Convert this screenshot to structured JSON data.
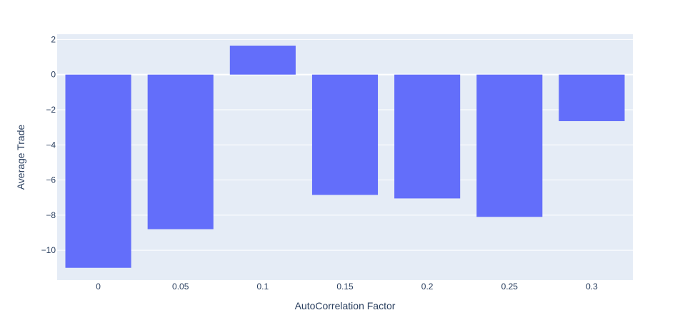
{
  "chart_data": {
    "type": "bar",
    "categories": [
      "0",
      "0.05",
      "0.1",
      "0.15",
      "0.2",
      "0.25",
      "0.3"
    ],
    "values": [
      -11.0,
      -8.8,
      1.65,
      -6.85,
      -7.05,
      -8.1,
      -2.65
    ],
    "xlabel": "AutoCorrelation Factor",
    "ylabel": "Average Trade",
    "ylim": [
      -11.7,
      2.3
    ],
    "yticks": [
      2,
      0,
      -2,
      -4,
      -6,
      -8,
      -10
    ],
    "ytick_labels": [
      "2",
      "0",
      "−2",
      "−4",
      "−6",
      "−8",
      "−10"
    ],
    "grid": true,
    "colors": {
      "bar": "#636efa",
      "plot_bg": "#e5ecf6",
      "grid": "#ffffff",
      "text": "#2a3f5f"
    }
  }
}
